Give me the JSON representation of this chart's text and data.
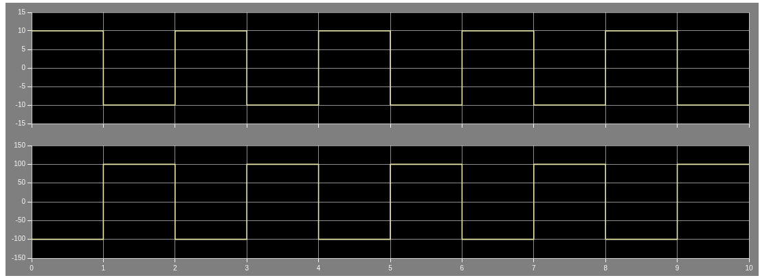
{
  "chart_data": [
    {
      "type": "step",
      "x": [
        0,
        1,
        2,
        3,
        4,
        5,
        6,
        7,
        8,
        9,
        10
      ],
      "series": [
        {
          "color": "#e6e6a8",
          "values": [
            10,
            -10,
            10,
            -10,
            10,
            -10,
            10,
            -10,
            10,
            -10,
            -10
          ]
        }
      ],
      "xlim": [
        0,
        10
      ],
      "xticks": [
        0,
        1,
        2,
        3,
        4,
        5,
        6,
        7,
        8,
        9,
        10
      ],
      "ylim": [
        -15,
        15
      ],
      "yticks": [
        -15,
        -10,
        -5,
        0,
        5,
        10,
        15
      ],
      "grid": true,
      "tick_labels": "y"
    },
    {
      "type": "step",
      "x": [
        0,
        1,
        2,
        3,
        4,
        5,
        6,
        7,
        8,
        9,
        10
      ],
      "series": [
        {
          "color": "#e6e6a8",
          "values": [
            -100,
            100,
            -100,
            100,
            -100,
            100,
            -100,
            100,
            -100,
            100,
            100
          ]
        }
      ],
      "xlim": [
        0,
        10
      ],
      "xticks": [
        0,
        1,
        2,
        3,
        4,
        5,
        6,
        7,
        8,
        9,
        10
      ],
      "ylim": [
        -150,
        150
      ],
      "yticks": [
        -150,
        -100,
        -50,
        0,
        50,
        100,
        150
      ],
      "grid": true
    }
  ]
}
